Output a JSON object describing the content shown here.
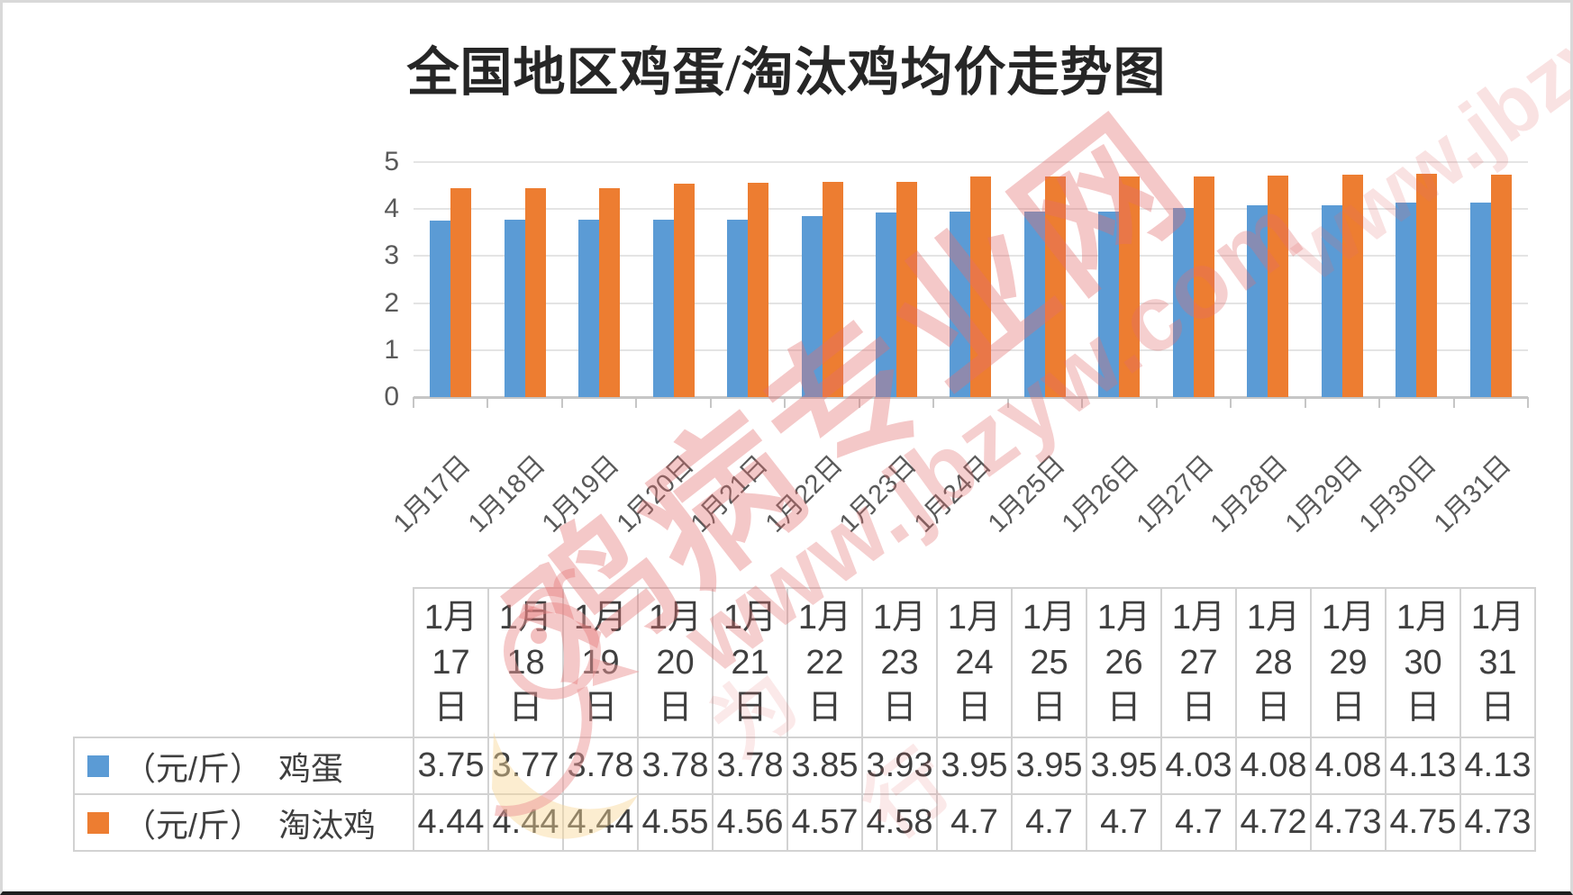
{
  "chart_data": {
    "type": "bar",
    "title": "全国地区鸡蛋/淘汰鸡均价走势图",
    "categories": [
      "1月17日",
      "1月18日",
      "1月19日",
      "1月20日",
      "1月21日",
      "1月22日",
      "1月23日",
      "1月24日",
      "1月25日",
      "1月26日",
      "1月27日",
      "1月28日",
      "1月29日",
      "1月30日",
      "1月31日"
    ],
    "series": [
      {
        "name": "鸡蛋",
        "unit": "元/斤",
        "legend_label": "（元/斤）　鸡蛋",
        "color": "#5B9BD5",
        "values": [
          3.75,
          3.77,
          3.78,
          3.78,
          3.78,
          3.85,
          3.93,
          3.95,
          3.95,
          3.95,
          4.03,
          4.08,
          4.08,
          4.13,
          4.13
        ]
      },
      {
        "name": "淘汰鸡",
        "unit": "元/斤",
        "legend_label": "（元/斤）　淘汰鸡",
        "color": "#ED7D31",
        "values": [
          4.44,
          4.44,
          4.44,
          4.55,
          4.56,
          4.57,
          4.58,
          4.7,
          4.7,
          4.7,
          4.7,
          4.72,
          4.73,
          4.75,
          4.73
        ]
      }
    ],
    "ylim": [
      0,
      5
    ],
    "yticks": [
      "0",
      "1",
      "2",
      "3",
      "4",
      "5"
    ],
    "grid": "horizontal",
    "legend_position": "bottom-table",
    "x_label_rotation_deg": -45
  },
  "table": {
    "rows": [
      {
        "legend_color": "#5B9BD5",
        "label": "（元/斤）　鸡蛋",
        "values": [
          "3.75",
          "3.77",
          "3.78",
          "3.78",
          "3.78",
          "3.85",
          "3.93",
          "3.95",
          "3.95",
          "3.95",
          "4.03",
          "4.08",
          "4.08",
          "4.13",
          "4.13"
        ]
      },
      {
        "legend_color": "#ED7D31",
        "label": "（元/斤）　淘汰鸡",
        "values": [
          "4.44",
          "4.44",
          "4.44",
          "4.55",
          "4.56",
          "4.57",
          "4.58",
          "4.7",
          "4.7",
          "4.7",
          "4.7",
          "4.72",
          "4.73",
          "4.75",
          "4.73"
        ]
      }
    ]
  },
  "watermark": {
    "site_name": "鸡病专业网",
    "site_url": "www.jbzyw.com",
    "url_fragment": "www.jbzyw",
    "faint_characters": [
      "为",
      "行"
    ],
    "color": "#E26E6E"
  },
  "colors": {
    "series_egg_blue": "#5B9BD5",
    "series_chicken_orange": "#ED7D31",
    "gridline": "#E4E4E4",
    "axis": "#C6C6C6",
    "axis_text": "#595959",
    "table_text": "#3F3F3F",
    "table_border": "#D2D2D2",
    "title_text": "#262626"
  }
}
